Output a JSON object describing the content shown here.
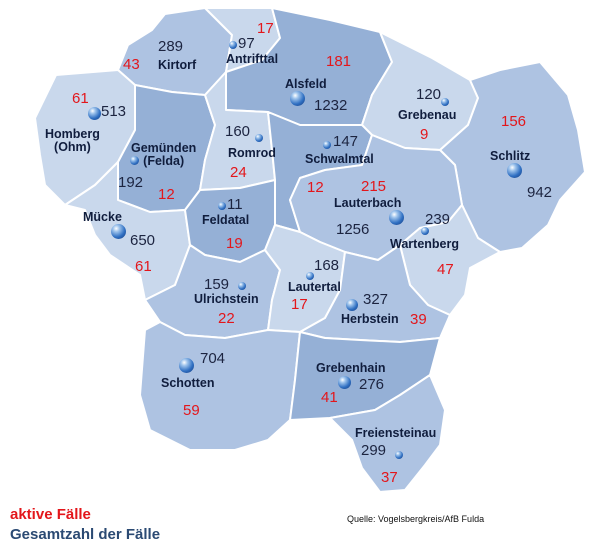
{
  "legend": {
    "active_label": "aktive Fälle",
    "total_label": "Gesamtzahl der Fälle",
    "active_color": "#e3161b",
    "total_color": "#2b4a73"
  },
  "source": "Quelle: Vogelsbergkreis/AfB Fulda",
  "palette": {
    "light": "#c9d8ec",
    "medium": "#aec3e2",
    "dark": "#95b0d6",
    "marker": "sphere-marker-icon"
  },
  "municipalities": {
    "kirtorf": {
      "name": "Kirtorf",
      "total": "289",
      "active": "43"
    },
    "antrifttal": {
      "name": "Antrifttal",
      "total": "97",
      "active": "17"
    },
    "alsfeld": {
      "name": "Alsfeld",
      "total": "1232",
      "active": "181"
    },
    "grebenau": {
      "name": "Grebenau",
      "total": "120",
      "active": "9"
    },
    "homberg": {
      "name": "Homberg\n(Ohm)",
      "total": "513",
      "active": "61"
    },
    "gemuenden": {
      "name": "Gemünden\n(Felda)",
      "total": "192",
      "active": "12"
    },
    "romrod": {
      "name": "Romrod",
      "total": "160",
      "active": "24"
    },
    "schwalmtal": {
      "name": "Schwalmtal",
      "total": "147",
      "active": "12"
    },
    "schlitz": {
      "name": "Schlitz",
      "total": "942",
      "active": "156"
    },
    "muecke": {
      "name": "Mücke",
      "total": "650",
      "active": "61"
    },
    "feldatal": {
      "name": "Feldatal",
      "total": "11",
      "active": "19"
    },
    "lauterbach": {
      "name": "Lauterbach",
      "total": "1256",
      "active": "215"
    },
    "wartenberg": {
      "name": "Wartenberg",
      "total": "239",
      "active": "47"
    },
    "ulrichstein": {
      "name": "Ulrichstein",
      "total": "159",
      "active": "22"
    },
    "lautertal": {
      "name": "Lautertal",
      "total": "168",
      "active": "17"
    },
    "herbstein": {
      "name": "Herbstein",
      "total": "327",
      "active": "39"
    },
    "schotten": {
      "name": "Schotten",
      "total": "704",
      "active": "59"
    },
    "grebenhain": {
      "name": "Grebenhain",
      "total": "276",
      "active": "41"
    },
    "freiensteinau": {
      "name": "Freiensteinau",
      "total": "299",
      "active": "37"
    }
  }
}
